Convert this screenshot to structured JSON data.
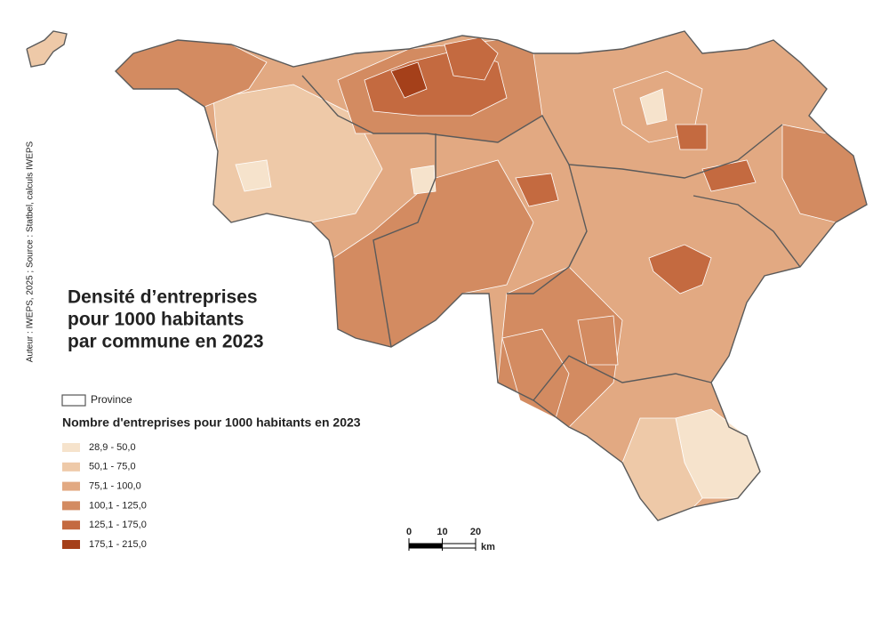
{
  "credit": "Auteur : IWEPS, 2025 ; Source : Statbel, calculs IWEPS",
  "title": [
    "Densité d’entreprises",
    "pour 1000 habitants",
    "par commune en 2023"
  ],
  "legend": {
    "province": "Province",
    "title": "Nombre d'entreprises pour 1000 habitants en 2023",
    "classes": [
      {
        "label": "28,9 - 50,0",
        "color": "#f6e3cc"
      },
      {
        "label": "50,1 - 75,0",
        "color": "#eec9a8"
      },
      {
        "label": "75,1 - 100,0",
        "color": "#e2a982"
      },
      {
        "label": "100,1 - 125,0",
        "color": "#d38b61"
      },
      {
        "label": "125,1 - 175,0",
        "color": "#c46a40"
      },
      {
        "label": "175,1 - 215,0",
        "color": "#a5401a"
      }
    ]
  },
  "scale_bar": {
    "ticks": [
      0,
      10,
      20
    ],
    "unit": "km"
  }
}
